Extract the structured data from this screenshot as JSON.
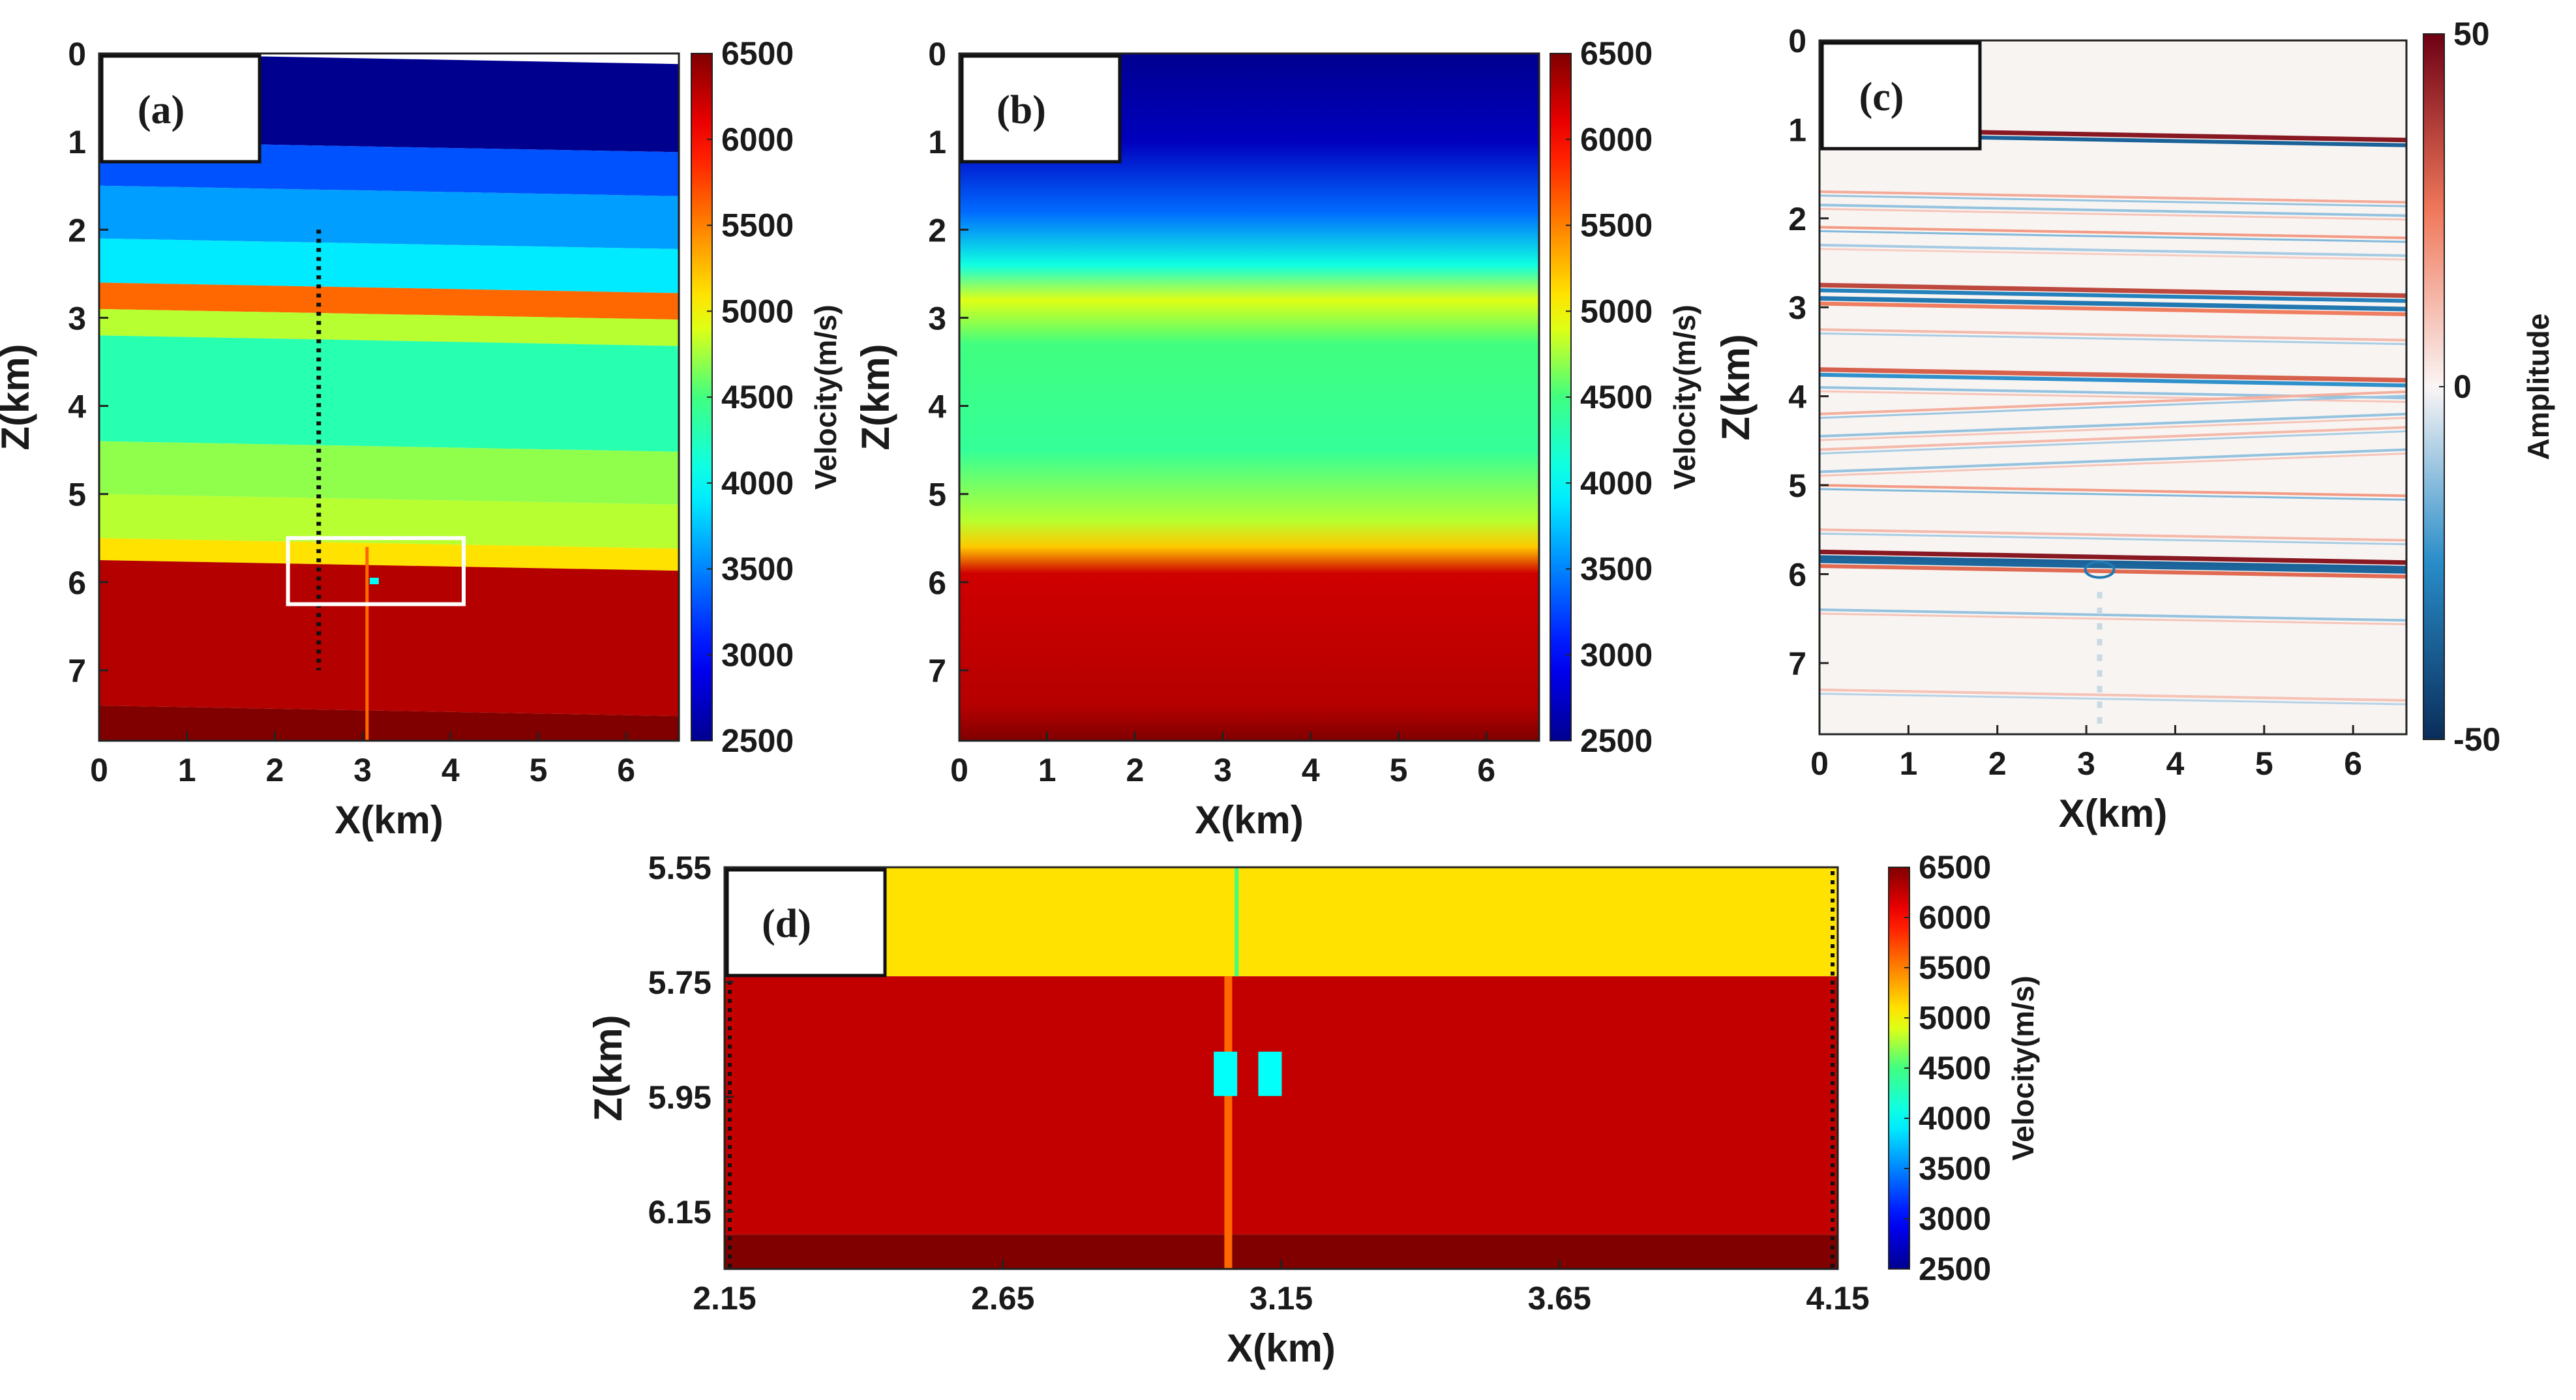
{
  "chart_data": [
    {
      "panel": "a",
      "type": "heatmap",
      "title": "",
      "panel_label": "(a)",
      "xlabel": "X(km)",
      "ylabel": "Z(km)",
      "xlim": [
        0,
        6.6
      ],
      "ylim": [
        7.8,
        0
      ],
      "x_ticks": [
        "0",
        "1",
        "2",
        "3",
        "4",
        "5",
        "6"
      ],
      "y_ticks": [
        "0",
        "1",
        "2",
        "3",
        "4",
        "5",
        "6",
        "7"
      ],
      "colorbar": {
        "label": "Velocity(m/s)",
        "ticks": [
          "6500",
          "6000",
          "5500",
          "5000",
          "4500",
          "4000",
          "3500",
          "3000",
          "2500"
        ],
        "range": [
          2500,
          6500
        ]
      },
      "layers": [
        {
          "top": 0.0,
          "bottom": 1.0,
          "velocity": 2500
        },
        {
          "top": 1.0,
          "bottom": 1.5,
          "velocity": 3300
        },
        {
          "top": 1.5,
          "bottom": 2.1,
          "velocity": 3600
        },
        {
          "top": 2.1,
          "bottom": 2.6,
          "velocity": 3900
        },
        {
          "top": 2.6,
          "bottom": 2.9,
          "velocity": 5600
        },
        {
          "top": 2.9,
          "bottom": 3.2,
          "velocity": 4800
        },
        {
          "top": 3.2,
          "bottom": 4.4,
          "velocity": 4300
        },
        {
          "top": 4.4,
          "bottom": 5.0,
          "velocity": 4700
        },
        {
          "top": 5.0,
          "bottom": 5.5,
          "velocity": 4800
        },
        {
          "top": 5.5,
          "bottom": 5.75,
          "velocity": 5100
        },
        {
          "top": 5.75,
          "bottom": 7.4,
          "velocity": 6300
        },
        {
          "top": 7.4,
          "bottom": 7.8,
          "velocity": 6500
        }
      ],
      "well_line": {
        "x": 2.5,
        "z_from": 2.0,
        "z_to": 7.0
      },
      "zoom_box": {
        "x": [
          2.15,
          4.15
        ],
        "z": [
          5.5,
          6.25
        ]
      }
    },
    {
      "panel": "b",
      "type": "heatmap",
      "title": "",
      "panel_label": "(b)",
      "xlabel": "X(km)",
      "ylabel": "Z(km)",
      "xlim": [
        0,
        6.6
      ],
      "ylim": [
        7.8,
        0
      ],
      "x_ticks": [
        "0",
        "1",
        "2",
        "3",
        "4",
        "5",
        "6"
      ],
      "y_ticks": [
        "0",
        "1",
        "2",
        "3",
        "4",
        "5",
        "6",
        "7"
      ],
      "colorbar": {
        "label": "Velocity(m/s)",
        "ticks": [
          "6500",
          "6000",
          "5500",
          "5000",
          "4500",
          "4000",
          "3500",
          "3000",
          "2500"
        ],
        "range": [
          2500,
          6500
        ]
      },
      "profile": [
        {
          "z": 0.0,
          "velocity": 2500
        },
        {
          "z": 1.0,
          "velocity": 2700
        },
        {
          "z": 1.8,
          "velocity": 3400
        },
        {
          "z": 2.4,
          "velocity": 4100
        },
        {
          "z": 2.8,
          "velocity": 4900
        },
        {
          "z": 3.3,
          "velocity": 4500
        },
        {
          "z": 4.5,
          "velocity": 4400
        },
        {
          "z": 5.3,
          "velocity": 4800
        },
        {
          "z": 5.6,
          "velocity": 5200
        },
        {
          "z": 5.9,
          "velocity": 6200
        },
        {
          "z": 7.4,
          "velocity": 6300
        },
        {
          "z": 7.8,
          "velocity": 6500
        }
      ]
    },
    {
      "panel": "c",
      "type": "heatmap",
      "title": "",
      "panel_label": "(c)",
      "xlabel": "X(km)",
      "ylabel": "Z(km)",
      "xlim": [
        0,
        6.6
      ],
      "ylim": [
        7.8,
        0
      ],
      "x_ticks": [
        "0",
        "1",
        "2",
        "3",
        "4",
        "5",
        "6"
      ],
      "y_ticks": [
        "0",
        "1",
        "2",
        "3",
        "4",
        "5",
        "6",
        "7"
      ],
      "colorbar": {
        "label": "Amplitude",
        "ticks": [
          "50",
          "0",
          "-50"
        ],
        "range": [
          -50,
          50
        ]
      },
      "reflectors": [
        {
          "z": 1.0,
          "amp": 45
        },
        {
          "z": 1.7,
          "amp": 15
        },
        {
          "z": 1.85,
          "amp": -12
        },
        {
          "z": 2.1,
          "amp": 18
        },
        {
          "z": 2.3,
          "amp": -10
        },
        {
          "z": 2.75,
          "amp": 35
        },
        {
          "z": 2.9,
          "amp": -30
        },
        {
          "z": 3.25,
          "amp": 12
        },
        {
          "z": 3.7,
          "amp": 30
        },
        {
          "z": 3.9,
          "amp": -12
        },
        {
          "z": 4.2,
          "amp": 14
        },
        {
          "z": 4.45,
          "amp": -12
        },
        {
          "z": 4.6,
          "amp": 12
        },
        {
          "z": 4.85,
          "amp": -12
        },
        {
          "z": 5.0,
          "amp": 18
        },
        {
          "z": 5.5,
          "amp": 12
        },
        {
          "z": 5.75,
          "amp": 45
        },
        {
          "z": 5.85,
          "amp": -35
        },
        {
          "z": 6.4,
          "amp": -12
        },
        {
          "z": 7.3,
          "amp": 10
        }
      ]
    },
    {
      "panel": "d",
      "type": "heatmap",
      "title": "",
      "panel_label": "(d)",
      "xlabel": "X(km)",
      "ylabel": "Z(km)",
      "xlim": [
        2.15,
        4.15
      ],
      "ylim": [
        6.25,
        5.55
      ],
      "x_ticks": [
        "2.15",
        "2.65",
        "3.15",
        "3.65",
        "4.15"
      ],
      "y_ticks": [
        "5.55",
        "5.75",
        "5.95",
        "6.15"
      ],
      "colorbar": {
        "label": "Velocity(m/s)",
        "ticks": [
          "6500",
          "6000",
          "5500",
          "5000",
          "4500",
          "4000",
          "3500",
          "3000",
          "2500"
        ],
        "range": [
          2500,
          6500
        ]
      },
      "layers": [
        {
          "top": 5.55,
          "bottom": 5.74,
          "velocity": 5100
        },
        {
          "top": 5.74,
          "bottom": 6.19,
          "velocity": 6250
        },
        {
          "top": 6.19,
          "bottom": 6.25,
          "velocity": 6500
        }
      ],
      "anomalies": [
        {
          "x": 3.05,
          "z": 5.91,
          "velocity": 4000
        },
        {
          "x": 3.13,
          "z": 5.91,
          "velocity": 4000
        }
      ]
    }
  ]
}
